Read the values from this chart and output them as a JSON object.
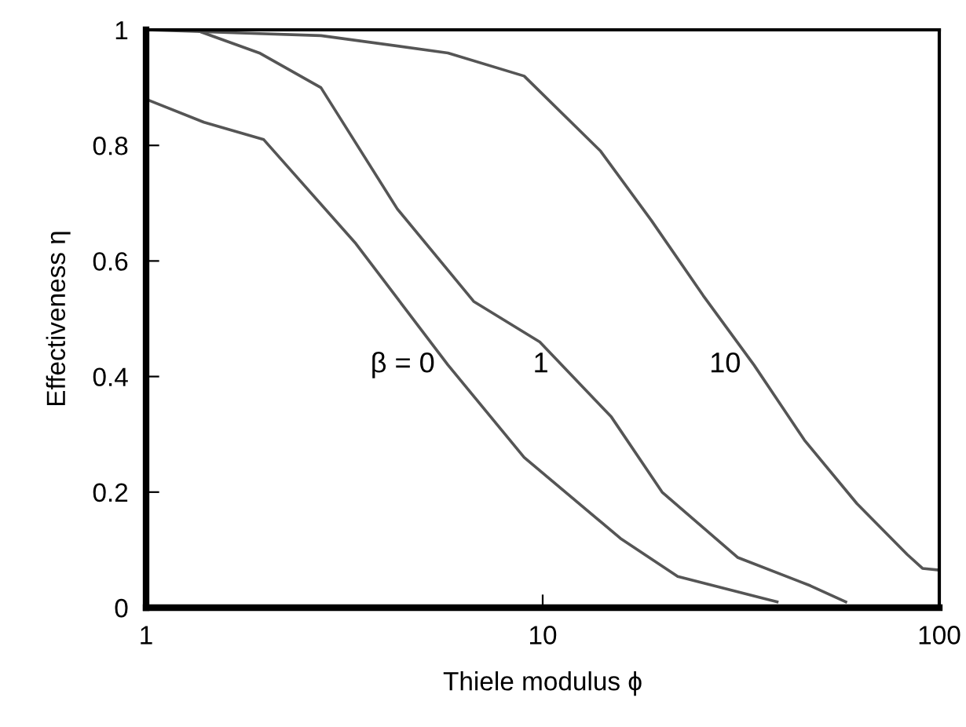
{
  "chart_data": {
    "type": "line",
    "xlabel": "Thiele modulus ϕ",
    "ylabel": "Effectiveness η",
    "log": "x",
    "xlim": [
      1,
      100
    ],
    "xticks": [
      1,
      10,
      100
    ],
    "ylim": [
      0,
      1
    ],
    "yticks": [
      0,
      0.2,
      0.4,
      0.6,
      0.8,
      1
    ],
    "grid": false,
    "marker": "none",
    "line_style": "solid",
    "series": [
      {
        "name": "β = 0",
        "color": "#555555",
        "x": [
          1,
          1.4,
          1.98,
          3.38,
          5.77,
          8.98,
          15.7,
          21.9,
          39
        ],
        "values": [
          0.88,
          0.84,
          0.81,
          0.63,
          0.42,
          0.26,
          0.12,
          0.054,
          0.01
        ]
      },
      {
        "name": "1",
        "color": "#555555",
        "x": [
          1,
          1.33,
          1.93,
          2.76,
          4.3,
          6.7,
          9.83,
          14.9,
          20,
          31,
          47.3,
          58.1
        ],
        "values": [
          1,
          1,
          0.96,
          0.9,
          0.69,
          0.53,
          0.46,
          0.33,
          0.2,
          0.087,
          0.038,
          0.01
        ]
      },
      {
        "name": "10",
        "color": "#555555",
        "x": [
          1,
          2.76,
          5.77,
          8.98,
          14,
          18.8,
          25.4,
          34.1,
          45.7,
          62,
          83,
          90.7,
          100
        ],
        "values": [
          1,
          0.99,
          0.96,
          0.92,
          0.79,
          0.67,
          0.54,
          0.42,
          0.29,
          0.18,
          0.092,
          0.068,
          0.065
        ]
      }
    ]
  }
}
